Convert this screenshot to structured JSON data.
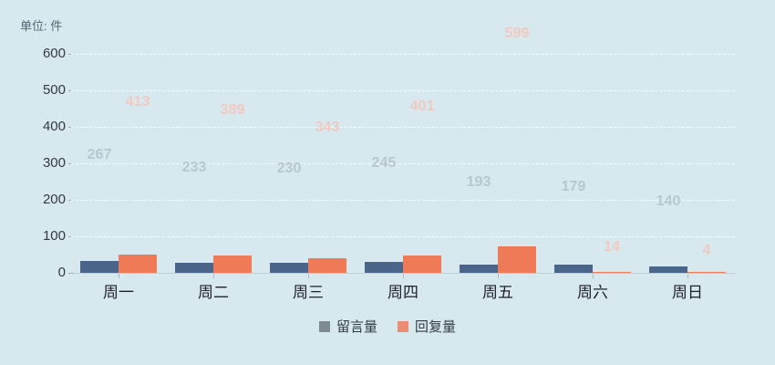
{
  "chart_data": {
    "type": "bar",
    "unit_label": "单位: 件",
    "categories": [
      "周一",
      "周二",
      "周三",
      "周四",
      "周五",
      "周六",
      "周日"
    ],
    "series": [
      {
        "name": "留言量",
        "values": [
          267,
          233,
          230,
          245,
          193,
          179,
          140
        ],
        "bar_color": "#4b6489",
        "value_label_color": "#b8c6cf",
        "legend_marker_color": "#7d8a92"
      },
      {
        "name": "回复量",
        "values": [
          413,
          389,
          343,
          401,
          599,
          14,
          4
        ],
        "bar_color": "#ee7a57",
        "value_label_color": "#f1c9c0",
        "legend_marker_color": "#ec8d73"
      }
    ],
    "ylim": [
      0,
      600
    ],
    "yticks": [
      0,
      100,
      200,
      300,
      400,
      500,
      600
    ],
    "grid": "horizontal-dashed",
    "legend_position": "bottom",
    "animation_progress": 0.12,
    "background_color": "#d8e8ef"
  }
}
